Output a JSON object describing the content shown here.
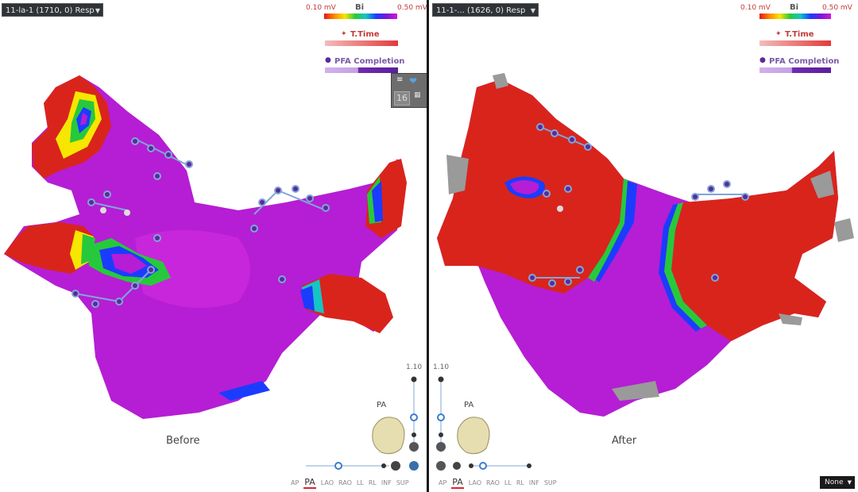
{
  "left_panel": {
    "map_selector": "11-la-1 (1710, 0) Resp",
    "legend": {
      "bi_min": "0.10 mV",
      "bi_label": "Bi",
      "bi_max": "0.50 mV",
      "ttime_label": "T.Time",
      "pfa_label": "PFA Completion"
    },
    "caption": "Before",
    "zoom_label": "1.10",
    "view_label": "PA",
    "widget_number": "16"
  },
  "right_panel": {
    "map_selector": "11-1-... (1626, 0) Resp",
    "legend": {
      "bi_min": "0.10 mV",
      "bi_label": "Bi",
      "bi_max": "0.50 mV",
      "ttime_label": "T.Time",
      "pfa_label": "PFA Completion"
    },
    "caption": "After",
    "zoom_label": "1.10",
    "view_label": "PA",
    "none_select": "None"
  },
  "orientations": [
    "AP",
    "PA",
    "LAO",
    "RAO",
    "LL",
    "RL",
    "INF",
    "SUP"
  ],
  "active_orientation": "PA",
  "colors": {
    "healthy_magenta": "#b51ed4",
    "scar_red": "#d9241c",
    "unmapped_gray": "#9a9a9a",
    "lesion_tag_purple": "#5b2a9a",
    "lesion_link_blue": "#7fa6d8"
  }
}
